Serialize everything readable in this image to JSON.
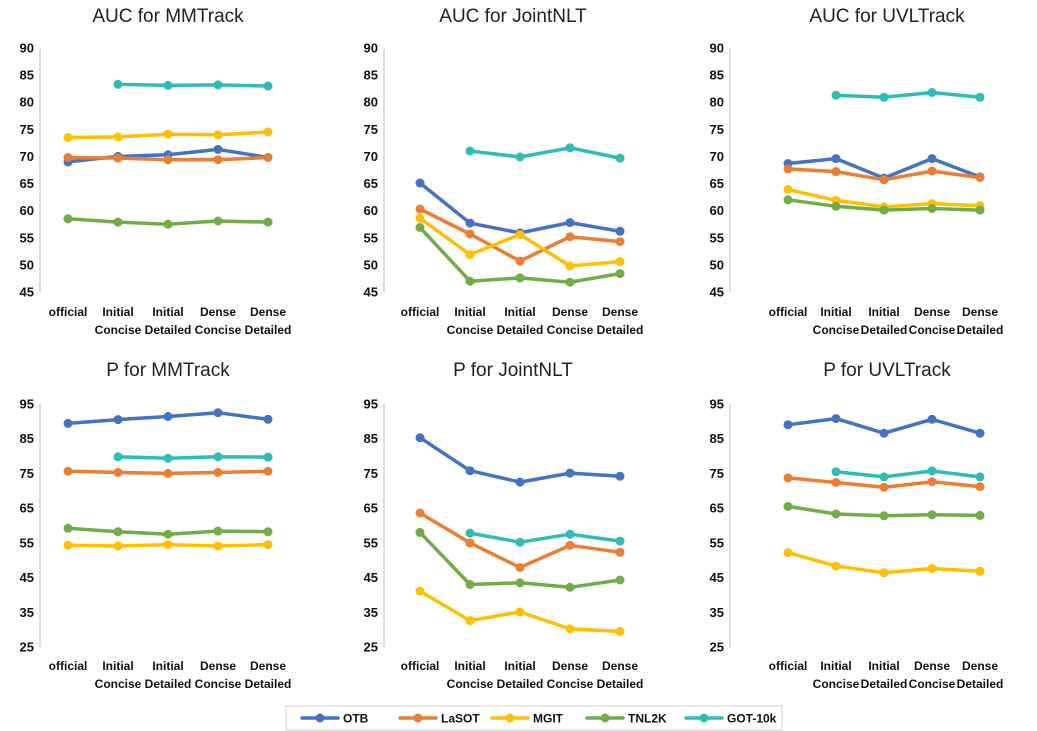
{
  "chart_data": [
    {
      "type": "line",
      "title": "AUC for MMTrack",
      "categories": [
        [
          "official"
        ],
        [
          "Initial",
          "Concise"
        ],
        [
          "Initial",
          "Detailed"
        ],
        [
          "Dense",
          "Concise"
        ],
        [
          "Dense",
          "Detailed"
        ]
      ],
      "ylim": [
        45,
        90
      ],
      "yticks": [
        45,
        50,
        55,
        60,
        65,
        70,
        75,
        80,
        85,
        90
      ],
      "series": [
        {
          "name": "OTB",
          "values": [
            69.0,
            70.0,
            70.3,
            71.3,
            69.8
          ]
        },
        {
          "name": "LaSOT",
          "values": [
            69.8,
            69.7,
            69.4,
            69.4,
            69.8
          ]
        },
        {
          "name": "MGIT",
          "values": [
            73.5,
            73.6,
            74.1,
            74.0,
            74.5
          ]
        },
        {
          "name": "TNL2K",
          "values": [
            58.5,
            57.9,
            57.5,
            58.1,
            57.9
          ]
        },
        {
          "name": "GOT-10k",
          "values": [
            null,
            83.3,
            83.1,
            83.2,
            83.0
          ]
        }
      ]
    },
    {
      "type": "line",
      "title": "AUC for JointNLT",
      "categories": [
        [
          "official"
        ],
        [
          "Initial",
          "Concise"
        ],
        [
          "Initial",
          "Detailed"
        ],
        [
          "Dense",
          "Concise"
        ],
        [
          "Dense",
          "Detailed"
        ]
      ],
      "ylim": [
        45,
        90
      ],
      "yticks": [
        45,
        50,
        55,
        60,
        65,
        70,
        75,
        80,
        85,
        90
      ],
      "series": [
        {
          "name": "OTB",
          "values": [
            65.1,
            57.7,
            55.9,
            57.8,
            56.2
          ]
        },
        {
          "name": "LaSOT",
          "values": [
            60.3,
            55.7,
            50.7,
            55.2,
            54.3
          ]
        },
        {
          "name": "MGIT",
          "values": [
            58.6,
            51.9,
            55.6,
            49.8,
            50.6
          ]
        },
        {
          "name": "TNL2K",
          "values": [
            56.9,
            47.0,
            47.6,
            46.8,
            48.4
          ]
        },
        {
          "name": "GOT-10k",
          "values": [
            null,
            71.0,
            69.9,
            71.6,
            69.7
          ]
        }
      ]
    },
    {
      "type": "line",
      "title": "AUC for UVLTrack",
      "categories": [
        [
          "official"
        ],
        [
          "Initial",
          "Concise"
        ],
        [
          "Initial",
          "Detailed"
        ],
        [
          "Dense",
          "Concise"
        ],
        [
          "Dense",
          "Detailed"
        ]
      ],
      "ylim": [
        45,
        90
      ],
      "yticks": [
        45,
        50,
        55,
        60,
        65,
        70,
        75,
        80,
        85,
        90
      ],
      "series": [
        {
          "name": "OTB",
          "values": [
            68.7,
            69.6,
            66.0,
            69.6,
            66.2
          ]
        },
        {
          "name": "LaSOT",
          "values": [
            67.7,
            67.2,
            65.7,
            67.3,
            66.1
          ]
        },
        {
          "name": "MGIT",
          "values": [
            63.9,
            61.9,
            60.7,
            61.3,
            60.9
          ]
        },
        {
          "name": "TNL2K",
          "values": [
            62.0,
            60.8,
            60.1,
            60.4,
            60.1
          ]
        },
        {
          "name": "GOT-10k",
          "values": [
            null,
            81.3,
            80.9,
            81.8,
            80.9
          ]
        }
      ]
    },
    {
      "type": "line",
      "title": "P for MMTrack",
      "categories": [
        [
          "official"
        ],
        [
          "Initial",
          "Concise"
        ],
        [
          "Initial",
          "Detailed"
        ],
        [
          "Dense",
          "Concise"
        ],
        [
          "Dense",
          "Detailed"
        ]
      ],
      "ylim": [
        25,
        95
      ],
      "yticks": [
        25,
        35,
        45,
        55,
        65,
        75,
        85,
        95
      ],
      "series": [
        {
          "name": "OTB",
          "values": [
            89.4,
            90.5,
            91.4,
            92.5,
            90.6
          ]
        },
        {
          "name": "LaSOT",
          "values": [
            75.6,
            75.3,
            75.0,
            75.3,
            75.6
          ]
        },
        {
          "name": "MGIT",
          "values": [
            54.3,
            54.1,
            54.5,
            54.1,
            54.5
          ]
        },
        {
          "name": "TNL2K",
          "values": [
            59.2,
            58.2,
            57.5,
            58.4,
            58.2
          ]
        },
        {
          "name": "GOT-10k",
          "values": [
            null,
            79.8,
            79.4,
            79.8,
            79.7
          ]
        }
      ]
    },
    {
      "type": "line",
      "title": "P for JointNLT",
      "categories": [
        [
          "official"
        ],
        [
          "Initial",
          "Concise"
        ],
        [
          "Initial",
          "Detailed"
        ],
        [
          "Dense",
          "Concise"
        ],
        [
          "Dense",
          "Detailed"
        ]
      ],
      "ylim": [
        25,
        95
      ],
      "yticks": [
        25,
        35,
        45,
        55,
        65,
        75,
        85,
        95
      ],
      "series": [
        {
          "name": "OTB",
          "values": [
            85.3,
            75.8,
            72.5,
            75.1,
            74.2
          ]
        },
        {
          "name": "LaSOT",
          "values": [
            63.6,
            55.0,
            47.9,
            54.3,
            52.3
          ]
        },
        {
          "name": "MGIT",
          "values": [
            41.1,
            32.6,
            35.1,
            30.2,
            29.5
          ]
        },
        {
          "name": "TNL2K",
          "values": [
            58.0,
            43.0,
            43.5,
            42.2,
            44.3
          ]
        },
        {
          "name": "GOT-10k",
          "values": [
            null,
            57.8,
            55.2,
            57.5,
            55.5
          ]
        }
      ]
    },
    {
      "type": "line",
      "title": "P for UVLTrack",
      "categories": [
        [
          "official"
        ],
        [
          "Initial",
          "Concise"
        ],
        [
          "Initial",
          "Detailed"
        ],
        [
          "Dense",
          "Concise"
        ],
        [
          "Dense",
          "Detailed"
        ]
      ],
      "ylim": [
        25,
        95
      ],
      "yticks": [
        25,
        35,
        45,
        55,
        65,
        75,
        85,
        95
      ],
      "series": [
        {
          "name": "OTB",
          "values": [
            89.0,
            90.8,
            86.6,
            90.6,
            86.6
          ]
        },
        {
          "name": "LaSOT",
          "values": [
            73.7,
            72.4,
            71.0,
            72.6,
            71.2
          ]
        },
        {
          "name": "MGIT",
          "values": [
            52.2,
            48.3,
            46.4,
            47.6,
            46.8
          ]
        },
        {
          "name": "TNL2K",
          "values": [
            65.5,
            63.3,
            62.8,
            63.1,
            62.9
          ]
        },
        {
          "name": "GOT-10k",
          "values": [
            null,
            75.5,
            74.0,
            75.7,
            74.0
          ]
        }
      ]
    }
  ],
  "legend": {
    "placement": "bottom",
    "entries": [
      {
        "name": "OTB",
        "color": "#4472C4"
      },
      {
        "name": "LaSOT",
        "color": "#ED7D31"
      },
      {
        "name": "MGIT",
        "color": "#FFC000"
      },
      {
        "name": "TNL2K",
        "color": "#70AD47"
      },
      {
        "name": "GOT-10k",
        "color": "#2EBDB4"
      }
    ]
  },
  "series_colors": {
    "OTB": "#4472C4",
    "LaSOT": "#ED7D31",
    "MGIT": "#FFC000",
    "TNL2K": "#70AD47",
    "GOT-10k": "#2EBDB4"
  },
  "grid": false
}
